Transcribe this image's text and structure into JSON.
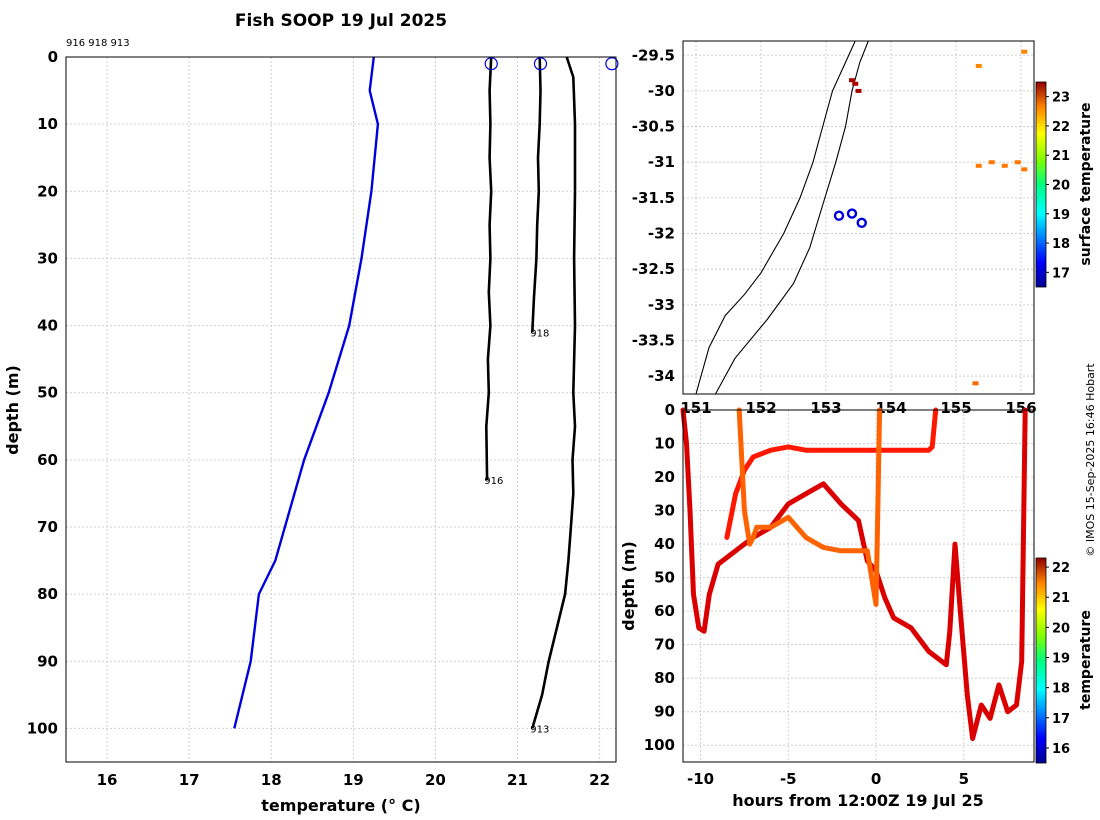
{
  "title": "Fish SOOP 19 Jul 2025",
  "credit": "© IMOS 15-Sep-2025 16:46 Hobart",
  "chart_data": [
    {
      "id": "profile",
      "type": "line",
      "title": "Fish SOOP 19 Jul 2025",
      "header_ids": "916 918 913",
      "xlabel": "temperature (° C)",
      "ylabel": "depth (m)",
      "xlim": [
        15.5,
        22.2
      ],
      "ylim": [
        105,
        0
      ],
      "xticks": [
        16,
        17,
        18,
        19,
        20,
        21,
        22
      ],
      "yticks": [
        0,
        10,
        20,
        30,
        40,
        50,
        60,
        70,
        80,
        90,
        100
      ],
      "grid": true,
      "series": [
        {
          "name": "",
          "color": "#0000dd",
          "x": [
            19.25,
            19.2,
            19.3,
            19.22,
            19.1,
            18.95,
            18.7,
            18.4,
            18.05,
            17.85,
            17.75,
            17.55
          ],
          "y": [
            0,
            5,
            10,
            20,
            30,
            40,
            50,
            60,
            75,
            80,
            90,
            100
          ]
        },
        {
          "name": "916",
          "color": "#000000",
          "x": [
            20.68,
            20.66,
            20.67,
            20.66,
            20.68,
            20.66,
            20.67,
            20.65,
            20.67,
            20.64,
            20.65,
            20.62,
            20.63
          ],
          "y": [
            0,
            5,
            10,
            15,
            20,
            25,
            30,
            35,
            40,
            45,
            50,
            55,
            63
          ]
        },
        {
          "name": "918",
          "color": "#000000",
          "x": [
            21.27,
            21.28,
            21.27,
            21.25,
            21.26,
            21.24,
            21.23,
            21.2,
            21.18
          ],
          "y": [
            0,
            5,
            10,
            15,
            20,
            25,
            30,
            36,
            41
          ]
        },
        {
          "name": "913",
          "color": "#000000",
          "x": [
            21.6,
            21.68,
            21.7,
            21.7,
            21.69,
            21.7,
            21.68,
            21.7,
            21.67,
            21.68,
            21.65,
            21.62,
            21.58,
            21.48,
            21.38,
            21.3,
            21.18
          ],
          "y": [
            0,
            3,
            10,
            20,
            30,
            40,
            50,
            55,
            60,
            65,
            70,
            75,
            80,
            85,
            90,
            95,
            100
          ]
        }
      ],
      "markers": [
        {
          "label": "916",
          "x": 20.68,
          "y": 1
        },
        {
          "label": "918",
          "x": 21.28,
          "y": 1
        },
        {
          "label": "913",
          "x": 22.15,
          "y": 1
        }
      ],
      "end_labels": [
        {
          "label": "916",
          "x": 20.62,
          "y": 63
        },
        {
          "label": "918",
          "x": 21.18,
          "y": 41
        },
        {
          "label": "913",
          "x": 21.18,
          "y": 100
        }
      ]
    },
    {
      "id": "map",
      "type": "scatter",
      "xlim": [
        150.8,
        156.2
      ],
      "ylim": [
        -34.25,
        -29.3
      ],
      "xticks": [
        151,
        152,
        153,
        154,
        155,
        156
      ],
      "yticks": [
        -29.5,
        -30,
        -30.5,
        -31,
        -31.5,
        -32,
        -32.5,
        -33,
        -33.5,
        -34
      ],
      "grid": true,
      "colorbar": {
        "label": "surface temperature",
        "min": 16.5,
        "max": 23.5,
        "ticks": [
          17,
          18,
          19,
          20,
          21,
          22,
          23
        ]
      },
      "coastline": {
        "lon": [
          151.0,
          151.2,
          151.45,
          151.75,
          152.0,
          152.35,
          152.6,
          152.8,
          152.95,
          153.1,
          153.3,
          153.45,
          153.5,
          153.58
        ],
        "lat": [
          -34.25,
          -33.6,
          -33.15,
          -32.85,
          -32.55,
          -32.0,
          -31.5,
          -31.0,
          -30.5,
          -30.0,
          -29.6,
          -29.3,
          -29.3,
          -29.3
        ]
      },
      "shelf_edge": {
        "lon": [
          151.3,
          151.6,
          152.1,
          152.5,
          152.75,
          152.95,
          153.15,
          153.3,
          153.4,
          153.52,
          153.65
        ],
        "lat": [
          -34.25,
          -33.75,
          -33.2,
          -32.7,
          -32.2,
          -31.6,
          -31.0,
          -30.5,
          -30.0,
          -29.6,
          -29.3
        ]
      },
      "stations": [
        {
          "label": "916",
          "lon": 153.2,
          "lat": -31.75
        },
        {
          "label": "918",
          "lon": 153.4,
          "lat": -31.72
        },
        {
          "label": "913",
          "lon": 153.55,
          "lat": -31.85
        }
      ],
      "sst_patches": [
        {
          "lon": [
            155.35,
            155.55,
            155.75,
            155.95,
            156.05
          ],
          "lat": [
            -31.05,
            -31.0,
            -31.05,
            -31.0,
            -31.1
          ],
          "value": 21.8
        },
        {
          "lon": [
            155.35,
            156.05
          ],
          "lat": [
            -29.65,
            -29.45
          ],
          "value": 21.7
        },
        {
          "lon": [
            153.4,
            153.45,
            153.5
          ],
          "lat": [
            -29.85,
            -29.9,
            -30.0
          ],
          "value": 23.2
        },
        {
          "lon": [
            155.3
          ],
          "lat": [
            -34.1
          ],
          "value": 21.9
        }
      ]
    },
    {
      "id": "time_depth",
      "type": "scatter",
      "xlabel": "hours from 12:00Z 19 Jul 25",
      "ylabel": "depth (m)",
      "xlim": [
        -11,
        9
      ],
      "ylim": [
        105,
        0
      ],
      "xticks": [
        -10,
        -5,
        0,
        5
      ],
      "yticks": [
        0,
        10,
        20,
        30,
        40,
        50,
        60,
        70,
        80,
        90,
        100
      ],
      "grid": true,
      "colorbar": {
        "label": "temperature",
        "min": 15.5,
        "max": 22.3,
        "ticks": [
          16,
          17,
          18,
          19,
          20,
          21,
          22
        ]
      },
      "series": [
        {
          "name": "913",
          "value": 21.7,
          "x": [
            -11,
            -10.8,
            -10.6,
            -10.4,
            -10.1,
            -9.8,
            -9.5,
            -9,
            -8.5,
            -8,
            -7,
            -6,
            -5,
            -4,
            -3,
            -2,
            -1,
            -0.5,
            0,
            0.5,
            1,
            2,
            3,
            4,
            4.2,
            4.5,
            4.8,
            5.2,
            5.5,
            6,
            6.5,
            7,
            7.5,
            8,
            8.3,
            8.5
          ],
          "y": [
            0,
            10,
            30,
            55,
            65,
            66,
            55,
            46,
            44,
            42,
            38,
            35,
            28,
            25,
            22,
            28,
            33,
            45,
            48,
            56,
            62,
            65,
            72,
            76,
            66,
            40,
            60,
            85,
            98,
            88,
            92,
            82,
            90,
            88,
            75,
            0
          ]
        },
        {
          "name": "918",
          "value": 21.3,
          "x": [
            -8.5,
            -8,
            -7.5,
            -7,
            -6,
            -5,
            -4,
            -3,
            -2,
            -1,
            0,
            1,
            2,
            3,
            3.2,
            3.4
          ],
          "y": [
            38,
            25,
            18,
            14,
            12,
            11,
            12,
            12,
            12,
            12,
            12,
            12,
            12,
            12,
            11,
            0
          ]
        },
        {
          "name": "916",
          "value": 20.8,
          "x": [
            -7.8,
            -7.5,
            -7.2,
            -7,
            -6.8,
            -6,
            -5,
            -4,
            -3,
            -2,
            -1,
            -0.5,
            0,
            0.1,
            0.2
          ],
          "y": [
            0,
            30,
            40,
            38,
            35,
            35,
            32,
            38,
            41,
            42,
            42,
            42,
            58,
            30,
            0
          ]
        }
      ]
    }
  ]
}
